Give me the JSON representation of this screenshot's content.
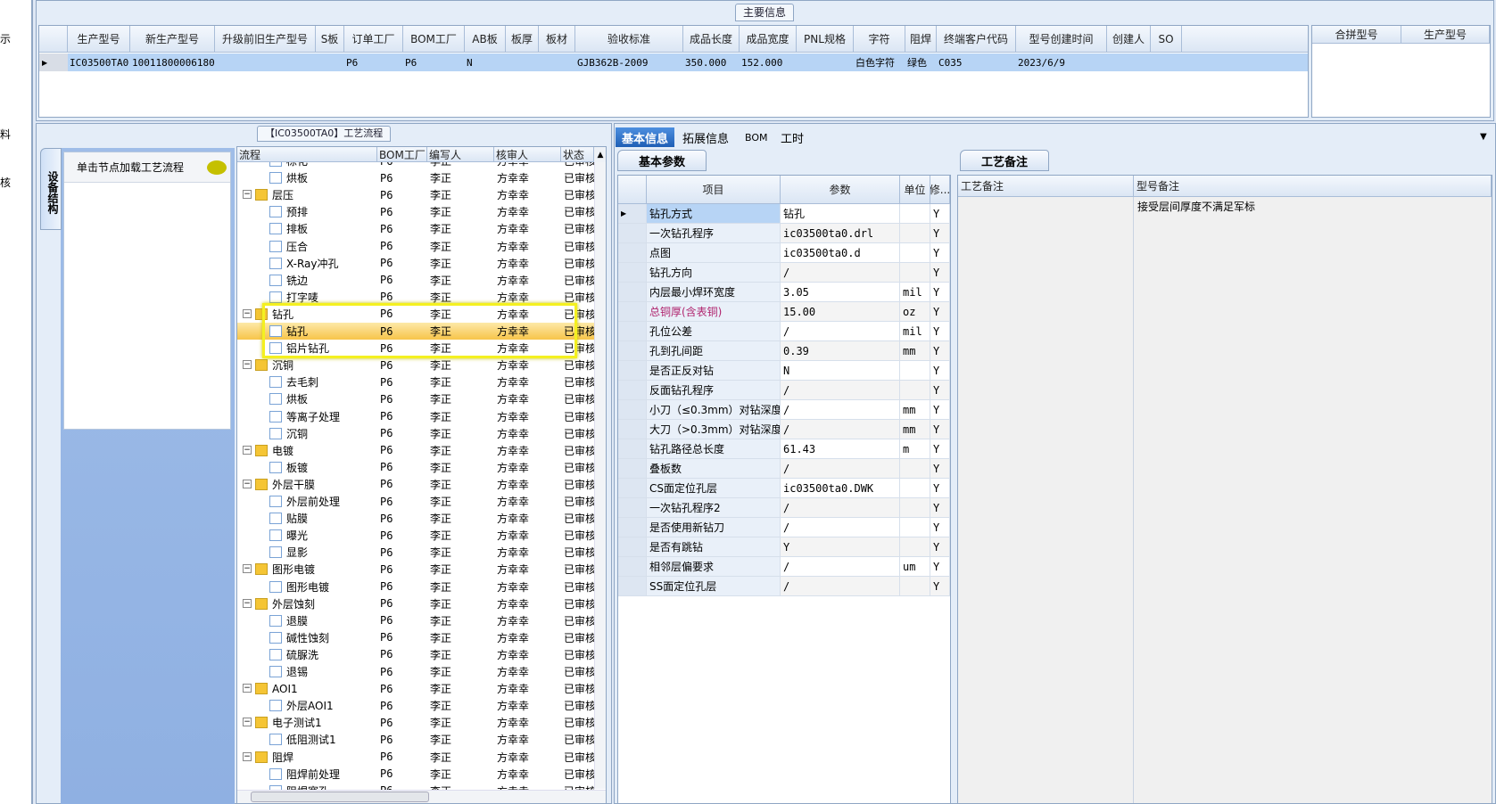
{
  "left_strip": {
    "items": [
      "示",
      "料",
      "核"
    ]
  },
  "top": {
    "title": "主要信息",
    "columns": [
      "生产型号",
      "新生产型号",
      "升级前旧生产型号",
      "S板",
      "订单工厂",
      "BOM工厂",
      "AB板",
      "板厚",
      "板材",
      "验收标准",
      "成品长度",
      "成品宽度",
      "PNL规格",
      "字符",
      "阻焊",
      "终端客户代码",
      "型号创建时间",
      "创建人",
      "SO"
    ],
    "row": [
      "IC03500TA0",
      "10011800006180",
      "",
      "",
      "P6",
      "P6",
      "N",
      "",
      "",
      "GJB362B-2009",
      "350.000",
      "152.000",
      "",
      "白色字符",
      "绿色",
      "C035",
      "2023/6/9",
      "",
      ""
    ],
    "side_columns": [
      "合拼型号",
      "生产型号"
    ]
  },
  "flow": {
    "title": "【IC03500TA0】工艺流程",
    "vertical_tab": "设备结构",
    "hint": "单击节点加载工艺流程",
    "columns": [
      "流程",
      "BOM工厂",
      "编写人",
      "核审人",
      "状态"
    ],
    "rows": [
      {
        "name": "棕化",
        "folder": false
      },
      {
        "name": "烘板",
        "folder": false
      },
      {
        "name": "层压",
        "folder": true
      },
      {
        "name": "预排",
        "folder": false
      },
      {
        "name": "排板",
        "folder": false
      },
      {
        "name": "压合",
        "folder": false
      },
      {
        "name": "X-Ray冲孔",
        "folder": false
      },
      {
        "name": "铣边",
        "folder": false
      },
      {
        "name": "打字唛",
        "folder": false
      },
      {
        "name": "钻孔",
        "folder": true
      },
      {
        "name": "钻孔",
        "folder": false,
        "selected": true
      },
      {
        "name": "铝片钻孔",
        "folder": false
      },
      {
        "name": "沉铜",
        "folder": true
      },
      {
        "name": "去毛刺",
        "folder": false
      },
      {
        "name": "烘板",
        "folder": false
      },
      {
        "name": "等离子处理",
        "folder": false
      },
      {
        "name": "沉铜",
        "folder": false
      },
      {
        "name": "电镀",
        "folder": true
      },
      {
        "name": "板镀",
        "folder": false
      },
      {
        "name": "外层干膜",
        "folder": true
      },
      {
        "name": "外层前处理",
        "folder": false
      },
      {
        "name": "贴膜",
        "folder": false
      },
      {
        "name": "曝光",
        "folder": false
      },
      {
        "name": "显影",
        "folder": false
      },
      {
        "name": "图形电镀",
        "folder": true
      },
      {
        "name": "图形电镀",
        "folder": false
      },
      {
        "name": "外层蚀刻",
        "folder": true
      },
      {
        "name": "退膜",
        "folder": false
      },
      {
        "name": "碱性蚀刻",
        "folder": false
      },
      {
        "name": "硫脲洗",
        "folder": false
      },
      {
        "name": "退锡",
        "folder": false
      },
      {
        "name": "AOI1",
        "folder": true
      },
      {
        "name": "外层AOI1",
        "folder": false
      },
      {
        "name": "电子测试1",
        "folder": true
      },
      {
        "name": "低阻测试1",
        "folder": false
      },
      {
        "name": "阻焊",
        "folder": true
      },
      {
        "name": "阻焊前处理",
        "folder": false
      },
      {
        "name": "阻焊塞孔",
        "folder": false
      }
    ],
    "bom": "P6",
    "writer": "李正",
    "reviewer": "方幸幸",
    "status": "已审核"
  },
  "detail": {
    "tabs": [
      "基本信息",
      "拓展信息",
      "BOM",
      "工时"
    ],
    "active_tab": "基本信息",
    "sub_tab": "基本参数",
    "columns": [
      "项目",
      "参数",
      "单位",
      "修..."
    ],
    "rows": [
      [
        "钻孔方式",
        "钻孔",
        "",
        "Y"
      ],
      [
        "一次钻孔程序",
        "ic03500ta0.drl",
        "",
        "Y"
      ],
      [
        "点图",
        "ic03500ta0.d",
        "",
        "Y"
      ],
      [
        "钻孔方向",
        "/",
        "",
        "Y"
      ],
      [
        "内层最小焊环宽度",
        "3.05",
        "mil",
        "Y"
      ],
      [
        "总铜厚(含表铜)",
        "15.00",
        "oz",
        "Y"
      ],
      [
        "孔位公差",
        "/",
        "mil",
        "Y"
      ],
      [
        "孔到孔间距",
        "0.39",
        "mm",
        "Y"
      ],
      [
        "是否正反对钻",
        "N",
        "",
        "Y"
      ],
      [
        "反面钻孔程序",
        "/",
        "",
        "Y"
      ],
      [
        "小刀（≤0.3mm）对钻深度",
        "/",
        "mm",
        "Y"
      ],
      [
        "大刀（>0.3mm）对钻深度",
        "/",
        "mm",
        "Y"
      ],
      [
        "钻孔路径总长度",
        "61.43",
        "m",
        "Y"
      ],
      [
        "叠板数",
        "/",
        "",
        "Y"
      ],
      [
        "CS面定位孔层",
        "ic03500ta0.DWK",
        "",
        "Y"
      ],
      [
        "一次钻孔程序2",
        "/",
        "",
        "Y"
      ],
      [
        "是否使用新钻刀",
        "/",
        "",
        "Y"
      ],
      [
        "是否有跳钻",
        "Y",
        "",
        "Y"
      ],
      [
        "相邻层偏要求",
        "/",
        "um",
        "Y"
      ],
      [
        "SS面定位孔层",
        "/",
        "",
        "Y"
      ]
    ],
    "highlight_color": "#b0246e"
  },
  "notes": {
    "tab": "工艺备注",
    "columns": [
      "工艺备注",
      "型号备注"
    ],
    "process_note": "",
    "model_note": "接受层间厚度不满足军标"
  },
  "colors": {
    "selection": "#b7d4f5",
    "accent": "#2f6fc4",
    "highlight": "#f4f020"
  }
}
